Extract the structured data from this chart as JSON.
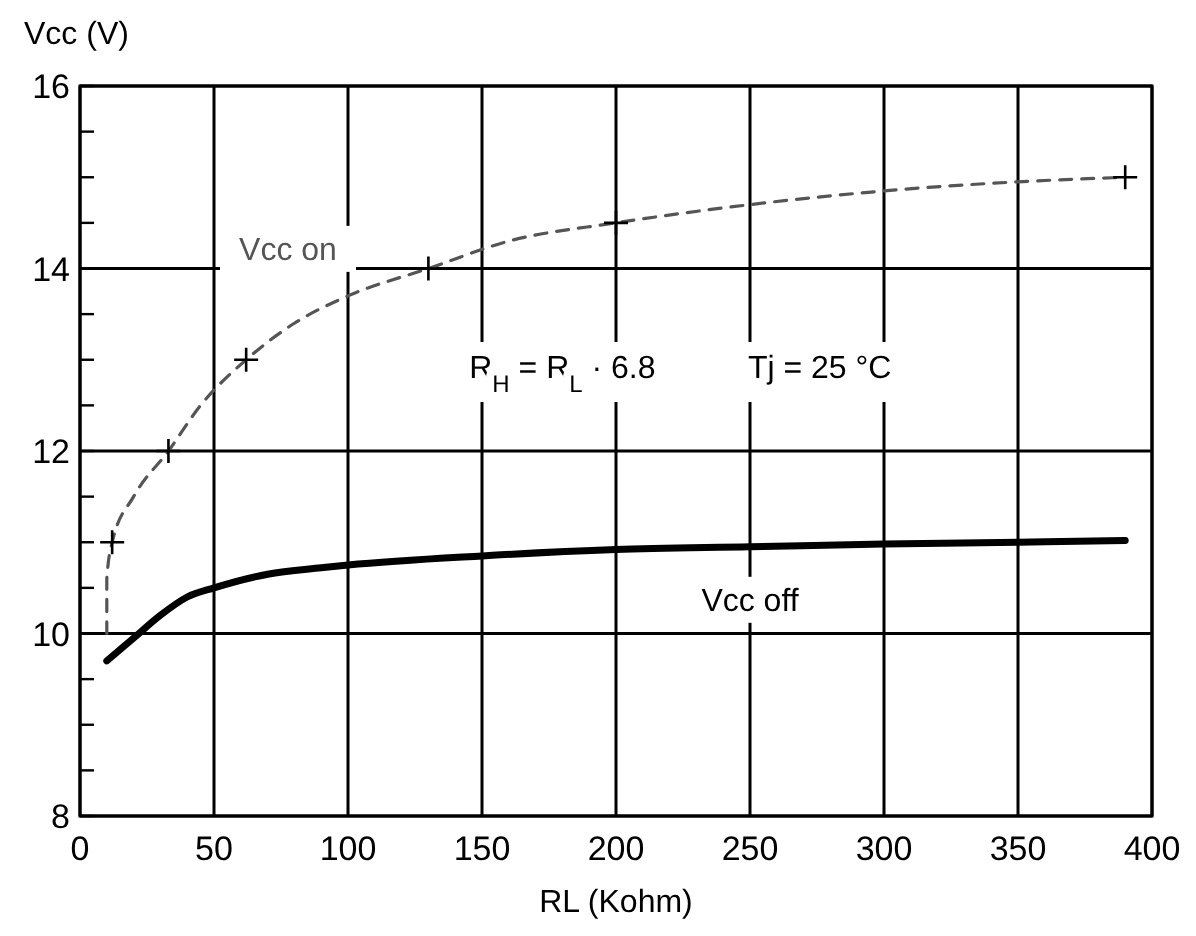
{
  "chart_data": {
    "type": "line",
    "xlabel": "RL (Kohm)",
    "ylabel": "Vcc (V)",
    "xlim": [
      0,
      400
    ],
    "xticks": [
      0,
      50,
      100,
      150,
      200,
      250,
      300,
      350,
      400
    ],
    "ylim": [
      8,
      16
    ],
    "yticks": [
      8,
      {
        "value": 8.5,
        "label": null
      },
      {
        "value": 9,
        "label": null
      },
      {
        "value": 9.5,
        "label": null
      },
      10,
      {
        "value": 10.5,
        "label": null
      },
      {
        "value": 11,
        "label": null
      },
      {
        "value": 11.5,
        "label": null
      },
      12,
      {
        "value": 12.5,
        "label": null
      },
      {
        "value": 13,
        "label": null
      },
      {
        "value": 13.5,
        "label": null
      },
      14,
      {
        "value": 14.5,
        "label": null
      },
      {
        "value": 15,
        "label": null
      },
      {
        "value": 15.5,
        "label": null
      },
      16
    ],
    "grid": true,
    "series": [
      {
        "name": "Vcc on",
        "color": "#555555",
        "line_style": "dashed",
        "marker": "none",
        "x": [
          10,
          10,
          12,
          20,
          33,
          45,
          62,
          80,
          100,
          130,
          160,
          200,
          250,
          300,
          350,
          390
        ],
        "values": [
          10.0,
          10.6,
          11,
          11.5,
          12,
          12.5,
          13,
          13.4,
          13.7,
          14,
          14.3,
          14.5,
          14.7,
          14.85,
          14.95,
          15
        ]
      },
      {
        "type": "scatter",
        "color": "#000000",
        "marker": "cross",
        "x": [
          12,
          33,
          62,
          130,
          200,
          390
        ],
        "values": [
          11,
          12,
          13,
          14,
          14.5,
          15
        ]
      },
      {
        "name": "Vcc off",
        "color": "#000000",
        "line_style": "solid",
        "marker": "none",
        "x": [
          10,
          20,
          30,
          40,
          50,
          70,
          90,
          100,
          150,
          200,
          250,
          300,
          350,
          390
        ],
        "values": [
          9.7,
          9.95,
          10.2,
          10.4,
          10.5,
          10.65,
          10.72,
          10.75,
          10.85,
          10.92,
          10.95,
          10.98,
          11.0,
          11.02
        ]
      }
    ],
    "annotations": [
      "R$_{H}$ = R$_{L}$ · 6.8",
      "Tj = 25 °C"
    ]
  }
}
